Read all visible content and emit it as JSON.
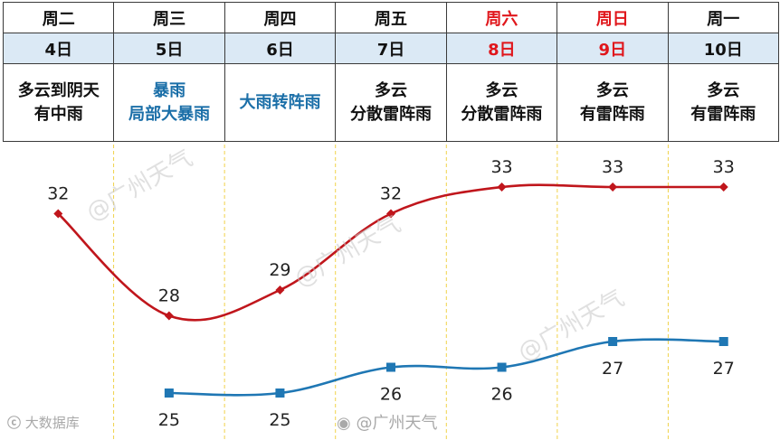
{
  "table": {
    "days": [
      {
        "label": "周二",
        "weekend": false
      },
      {
        "label": "周三",
        "weekend": false
      },
      {
        "label": "周四",
        "weekend": false
      },
      {
        "label": "周五",
        "weekend": false
      },
      {
        "label": "周六",
        "weekend": true
      },
      {
        "label": "周日",
        "weekend": true
      },
      {
        "label": "周一",
        "weekend": false
      }
    ],
    "dates": [
      "4日",
      "5日",
      "6日",
      "7日",
      "8日",
      "9日",
      "10日"
    ],
    "weather": [
      {
        "line1": "多云到阴天",
        "line2": "有中雨",
        "rain": false
      },
      {
        "line1": "暴雨",
        "line2": "局部大暴雨",
        "rain": true
      },
      {
        "line1": "大雨转阵雨",
        "line2": "",
        "rain": true
      },
      {
        "line1": "多云",
        "line2": "分散雷阵雨",
        "rain": false
      },
      {
        "line1": "多云",
        "line2": "分散雷阵雨",
        "rain": false
      },
      {
        "line1": "多云",
        "line2": "有雷阵雨",
        "rain": false
      },
      {
        "line1": "多云",
        "line2": "有雷阵雨",
        "rain": false
      }
    ]
  },
  "chart_data": {
    "type": "line",
    "categories": [
      "周二",
      "周三",
      "周四",
      "周五",
      "周六",
      "周日",
      "周一"
    ],
    "series": [
      {
        "values": [
          32,
          28,
          29,
          32,
          33,
          33,
          33
        ],
        "color": "#c0161c",
        "marker": "diamond"
      },
      {
        "values": [
          null,
          25,
          25,
          26,
          26,
          27,
          27
        ],
        "color": "#1f77b4",
        "marker": "square"
      }
    ],
    "grid": "vertical dashed",
    "grid_color": "#f0d24a"
  },
  "watermarks": {
    "account": "@广州天气",
    "weibo_handle": "@广州天气",
    "footer_left": "大数据库"
  }
}
